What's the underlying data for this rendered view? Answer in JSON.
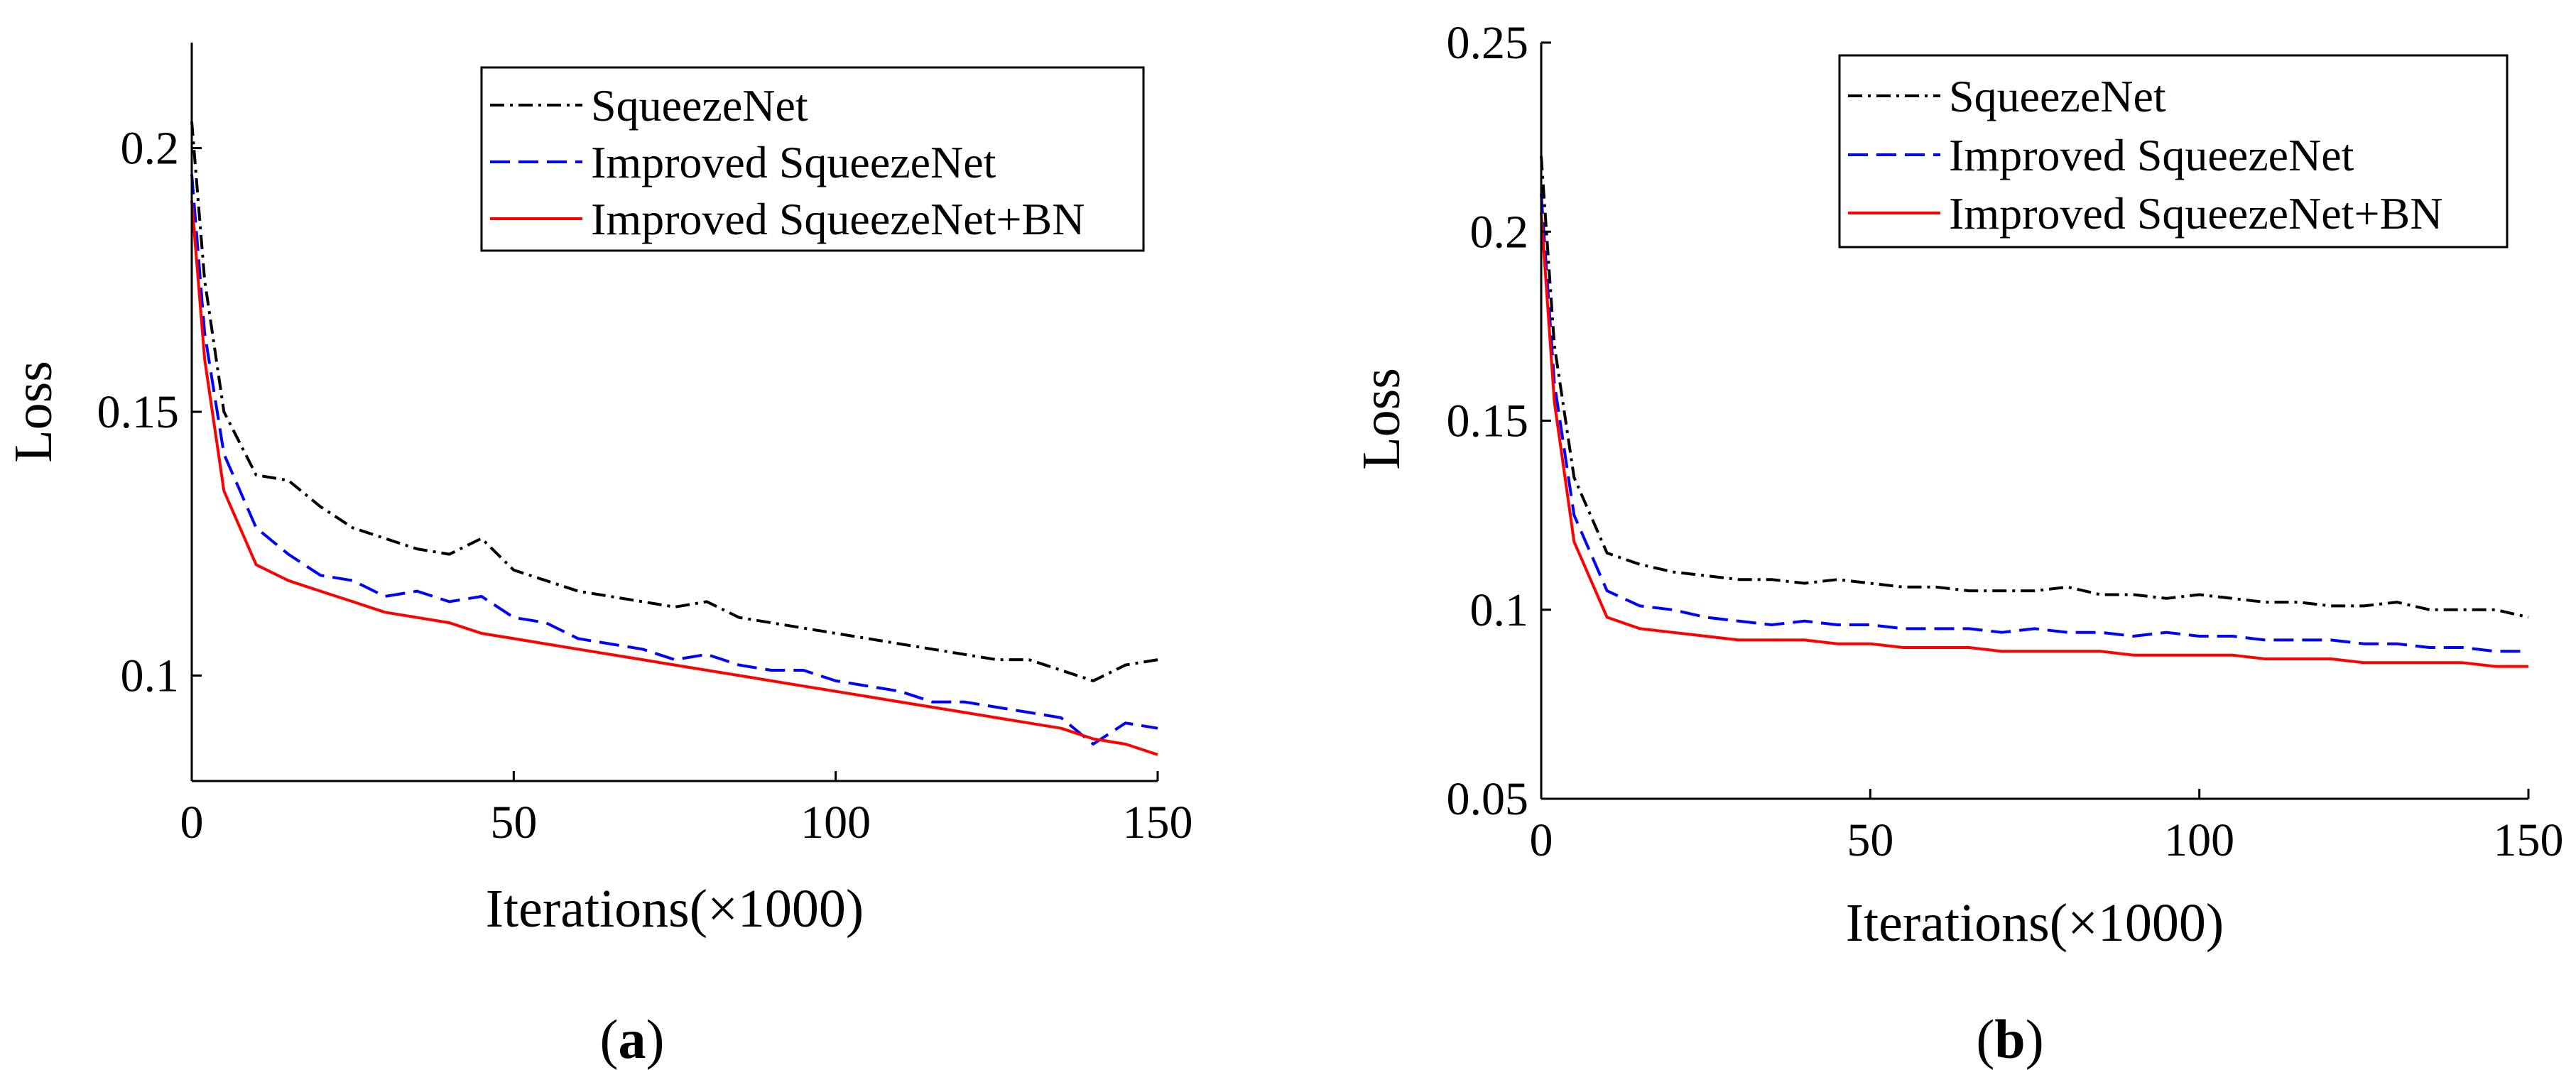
{
  "chart_data": [
    {
      "type": "line",
      "panel_label": "a",
      "xlabel": "Iterations(×1000)",
      "ylabel": "Loss",
      "xlim": [
        0,
        150
      ],
      "ylim": [
        0.08,
        0.22
      ],
      "xticks": [
        0,
        50,
        100,
        150
      ],
      "yticks": [
        0.1,
        0.15,
        0.2
      ],
      "xtick_labels": [
        "0",
        "50",
        "100",
        "150"
      ],
      "ytick_labels": [
        "0.1",
        "0.15",
        "0.2"
      ],
      "legend_location": "top-right",
      "x": [
        0,
        2,
        5,
        10,
        15,
        20,
        25,
        30,
        35,
        40,
        45,
        50,
        55,
        60,
        65,
        70,
        75,
        80,
        85,
        90,
        95,
        100,
        105,
        110,
        115,
        120,
        125,
        130,
        135,
        140,
        145,
        150
      ],
      "series": [
        {
          "name": "SqueezeNet",
          "color": "#000000",
          "dash": "dashdot",
          "values": [
            0.205,
            0.175,
            0.15,
            0.138,
            0.137,
            0.132,
            0.128,
            0.126,
            0.124,
            0.123,
            0.126,
            0.12,
            0.118,
            0.116,
            0.115,
            0.114,
            0.113,
            0.114,
            0.111,
            0.11,
            0.109,
            0.108,
            0.107,
            0.106,
            0.105,
            0.104,
            0.103,
            0.103,
            0.101,
            0.099,
            0.102,
            0.103
          ]
        },
        {
          "name": "Improved SqueezeNet",
          "color": "#0000FF",
          "dash": "dashed",
          "values": [
            0.195,
            0.165,
            0.142,
            0.128,
            0.123,
            0.119,
            0.118,
            0.115,
            0.116,
            0.114,
            0.115,
            0.111,
            0.11,
            0.107,
            0.106,
            0.105,
            0.103,
            0.104,
            0.102,
            0.101,
            0.101,
            0.099,
            0.098,
            0.097,
            0.095,
            0.095,
            0.094,
            0.093,
            0.092,
            0.087,
            0.091,
            0.09
          ]
        },
        {
          "name": "Improved SqueezeNet+BN",
          "color": "#FF0000",
          "dash": "solid",
          "values": [
            0.19,
            0.16,
            0.135,
            0.121,
            0.118,
            0.116,
            0.114,
            0.112,
            0.111,
            0.11,
            0.108,
            0.107,
            0.106,
            0.105,
            0.104,
            0.103,
            0.102,
            0.101,
            0.1,
            0.099,
            0.098,
            0.097,
            0.096,
            0.095,
            0.094,
            0.093,
            0.092,
            0.091,
            0.09,
            0.088,
            0.087,
            0.085
          ]
        }
      ]
    },
    {
      "type": "line",
      "panel_label": "b",
      "xlabel": "Iterations(×1000)",
      "ylabel": "Loss",
      "xlim": [
        0,
        150
      ],
      "ylim": [
        0.05,
        0.25
      ],
      "xticks": [
        0,
        50,
        100,
        150
      ],
      "yticks": [
        0.05,
        0.1,
        0.15,
        0.2,
        0.25
      ],
      "xtick_labels": [
        "0",
        "50",
        "100",
        "150"
      ],
      "ytick_labels": [
        "0.05",
        "0.1",
        "0.15",
        "0.2",
        "0.25"
      ],
      "legend_location": "top-right",
      "x": [
        0,
        2,
        5,
        10,
        15,
        20,
        25,
        30,
        35,
        40,
        45,
        50,
        55,
        60,
        65,
        70,
        75,
        80,
        85,
        90,
        95,
        100,
        105,
        110,
        115,
        120,
        125,
        130,
        135,
        140,
        145,
        150
      ],
      "series": [
        {
          "name": "SqueezeNet",
          "color": "#000000",
          "dash": "dashdot",
          "values": [
            0.22,
            0.17,
            0.135,
            0.115,
            0.112,
            0.11,
            0.109,
            0.108,
            0.108,
            0.107,
            0.108,
            0.107,
            0.106,
            0.106,
            0.105,
            0.105,
            0.105,
            0.106,
            0.104,
            0.104,
            0.103,
            0.104,
            0.103,
            0.102,
            0.102,
            0.101,
            0.101,
            0.102,
            0.1,
            0.1,
            0.1,
            0.098
          ]
        },
        {
          "name": "Improved SqueezeNet",
          "color": "#0000FF",
          "dash": "dashed",
          "values": [
            0.21,
            0.16,
            0.125,
            0.105,
            0.101,
            0.1,
            0.098,
            0.097,
            0.096,
            0.097,
            0.096,
            0.096,
            0.095,
            0.095,
            0.095,
            0.094,
            0.095,
            0.094,
            0.094,
            0.093,
            0.094,
            0.093,
            0.093,
            0.092,
            0.092,
            0.092,
            0.091,
            0.091,
            0.09,
            0.09,
            0.089,
            0.089
          ]
        },
        {
          "name": "Improved SqueezeNet+BN",
          "color": "#FF0000",
          "dash": "solid",
          "values": [
            0.205,
            0.155,
            0.118,
            0.098,
            0.095,
            0.094,
            0.093,
            0.092,
            0.092,
            0.092,
            0.091,
            0.091,
            0.09,
            0.09,
            0.09,
            0.089,
            0.089,
            0.089,
            0.089,
            0.088,
            0.088,
            0.088,
            0.088,
            0.087,
            0.087,
            0.087,
            0.086,
            0.086,
            0.086,
            0.086,
            0.085,
            0.085
          ]
        }
      ]
    }
  ],
  "captions": [
    {
      "open": "(",
      "letter": "a",
      "close": ")"
    },
    {
      "open": "(",
      "letter": "b",
      "close": ")"
    }
  ]
}
